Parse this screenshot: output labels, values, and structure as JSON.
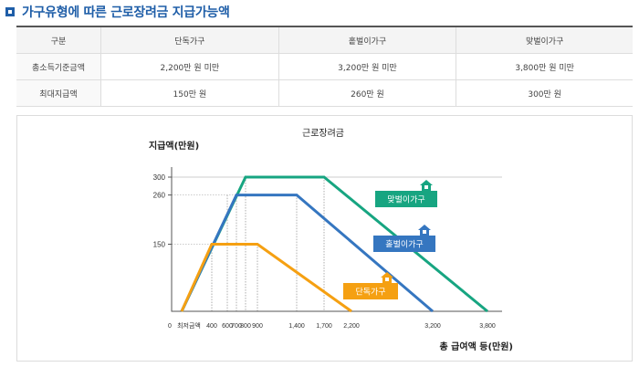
{
  "section_title": "가구유형에 따른 근로장려금 지급가능액",
  "table": {
    "headers": [
      "구분",
      "단독가구",
      "홑벌이가구",
      "맞벌이가구"
    ],
    "rows": [
      [
        "총소득기준금액",
        "2,200만 원 미만",
        "3,200만 원 미만",
        "3,800만 원 미만"
      ],
      [
        "최대지급액",
        "150만 원",
        "260만 원",
        "300만 원"
      ]
    ]
  },
  "colors": {
    "single": "#f5a012",
    "single_earner": "#3576c0",
    "dual_earner": "#17a581",
    "header_blue": "#1f5ea8"
  },
  "chart_data": {
    "type": "line",
    "title": "근로장려금",
    "ylabel": "지급액(만원)",
    "xlabel": "총 급여액 등(만원)",
    "y_ticks": [
      "300",
      "260",
      "150"
    ],
    "x_origin_label": "0",
    "x_tick_labels": [
      "최저금액",
      "400",
      "600",
      "700",
      "800",
      "900",
      "1,400",
      "1,700",
      "2,200",
      "3,200",
      "3,800"
    ],
    "series": [
      {
        "name": "단독가구",
        "points": [
          [
            0,
            0
          ],
          [
            400,
            150
          ],
          [
            900,
            150
          ],
          [
            2200,
            0
          ]
        ]
      },
      {
        "name": "홑벌이가구",
        "points": [
          [
            0,
            0
          ],
          [
            700,
            260
          ],
          [
            1400,
            260
          ],
          [
            3200,
            0
          ]
        ]
      },
      {
        "name": "맞벌이가구",
        "points": [
          [
            0,
            0
          ],
          [
            800,
            300
          ],
          [
            1700,
            300
          ],
          [
            3800,
            0
          ]
        ]
      }
    ]
  }
}
